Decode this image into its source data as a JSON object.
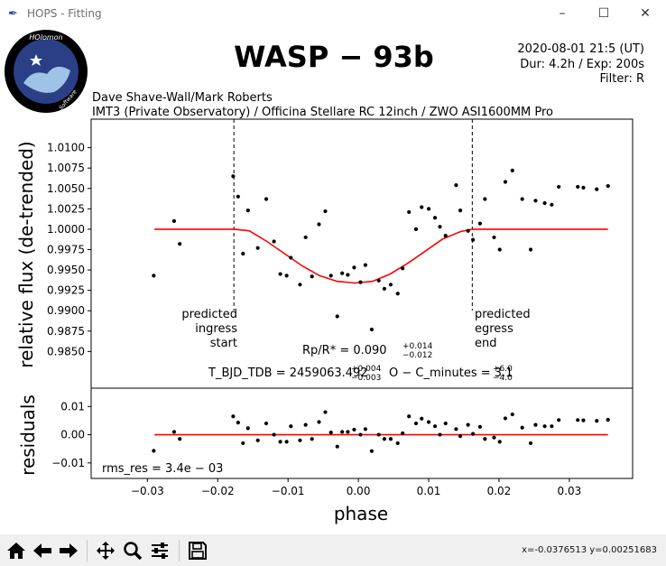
{
  "window": {
    "title": "HOPS - Fitting",
    "minimize_glyph": "–",
    "maximize_glyph": "☐",
    "close_glyph": "✕"
  },
  "figure": {
    "logo": {
      "top_text": "HOlomon",
      "left_text": "Photometric",
      "right_text": "Software"
    },
    "title": "WASP − 93b",
    "date_line": "2020-08-01 21:5 (UT)",
    "duration_line": "Dur: 4.2h / Exp: 200s",
    "filter_line": "Filter: R",
    "observers": "Dave Shave-Wall/Mark Roberts",
    "setup": "IMT3 (Private Observatory) / Officina Stellare RC 12inch / ZWO ASI1600MM Pro",
    "ingress_label": [
      "predicted",
      "ingress",
      "start"
    ],
    "egress_label": [
      "predicted",
      "egress",
      "end"
    ],
    "rp_text": {
      "lhs": "Rp/R* = 0.090",
      "up": "+0.014",
      "down": "−0.012"
    },
    "tmid_text": {
      "lhs": "T_BJD_TDB = 2459063.492",
      "up": "+0.004",
      "down": "−0.003",
      "oc": "O − C_minutes = 3.1",
      "oc_up": "+6.0",
      "oc_down": "−4.0"
    },
    "rms_text": "rms_res = 3.4e − 03"
  },
  "chart_data": [
    {
      "type": "scatter",
      "panel": "flux",
      "ylabel": "relative flux (de-trended)",
      "xlim": [
        -0.038,
        0.039
      ],
      "ylim": [
        0.9805,
        1.0135
      ],
      "yticks": [
        0.985,
        0.9875,
        0.99,
        0.9925,
        0.995,
        0.9975,
        1.0,
        1.0025,
        1.005,
        1.0075,
        1.01
      ],
      "ytick_labels": [
        "0.9850",
        "0.9875",
        "0.9900",
        "0.9925",
        "0.9950",
        "0.9975",
        "1.0000",
        "1.0025",
        "1.0050",
        "1.0075",
        "1.0100"
      ],
      "ingress_x": -0.0177,
      "egress_x": 0.0162,
      "series": [
        {
          "kind": "points",
          "color": "#000000",
          "x": [
            -0.0291,
            -0.0262,
            -0.0254,
            -0.0178,
            -0.0171,
            -0.0164,
            -0.0157,
            -0.0143,
            -0.0131,
            -0.012,
            -0.0111,
            -0.0102,
            -0.0096,
            -0.0083,
            -0.0075,
            -0.0066,
            -0.0056,
            -0.0047,
            -0.0039,
            -0.003,
            -0.0023,
            -0.0015,
            -0.0006,
            0.0003,
            0.001,
            0.0019,
            0.0029,
            0.0037,
            0.0046,
            0.0056,
            0.0063,
            0.0072,
            0.0082,
            0.009,
            0.01,
            0.0109,
            0.0116,
            0.0124,
            0.0139,
            0.0145,
            0.0156,
            0.0163,
            0.0173,
            0.018,
            0.0193,
            0.0201,
            0.0209,
            0.0219,
            0.0233,
            0.0245,
            0.0252,
            0.0265,
            0.0275,
            0.0285,
            0.0312,
            0.032,
            0.0339,
            0.0355
          ],
          "y": [
            0.9943,
            1.001,
            0.9982,
            1.0065,
            1.004,
            0.997,
            1.0023,
            0.9977,
            1.0037,
            0.9985,
            0.9945,
            0.9943,
            0.9965,
            0.9932,
            0.999,
            0.9942,
            1.0006,
            1.0022,
            0.9943,
            0.9893,
            0.9946,
            0.9944,
            0.9953,
            0.9935,
            0.9956,
            0.9877,
            0.9937,
            0.9927,
            0.9932,
            0.9921,
            0.9952,
            1.0021,
            1.0,
            1.0027,
            1.0025,
            1.0014,
            1.0003,
            0.9992,
            1.0054,
            1.0023,
            0.9998,
            0.9987,
            1.0007,
            1.0037,
            0.999,
            0.9975,
            1.0058,
            1.0072,
            1.0037,
            0.9975,
            1.0035,
            1.0032,
            1.003,
            1.0052,
            1.0052,
            1.0051,
            1.0049,
            1.0053
          ]
        },
        {
          "kind": "model",
          "color": "#ff0000",
          "x": [
            -0.029,
            -0.0177,
            -0.0155,
            -0.013,
            -0.0105,
            -0.008,
            -0.0055,
            -0.003,
            -0.0005,
            0.002,
            0.0045,
            0.007,
            0.0095,
            0.012,
            0.0145,
            0.0162,
            0.0355
          ],
          "y": [
            1.0,
            1.0,
            0.9998,
            0.9985,
            0.997,
            0.9955,
            0.9943,
            0.9936,
            0.9934,
            0.9936,
            0.9945,
            0.9958,
            0.9973,
            0.9988,
            0.9997,
            1.0,
            1.0
          ]
        }
      ]
    },
    {
      "type": "scatter",
      "panel": "residuals",
      "ylabel": "residuals",
      "xlabel": "phase",
      "xlim": [
        -0.038,
        0.039
      ],
      "ylim": [
        -0.0155,
        0.0165
      ],
      "yticks": [
        -0.01,
        0.0,
        0.01
      ],
      "ytick_labels": [
        "−0.01",
        "0.00",
        "0.01"
      ],
      "xticks": [
        -0.03,
        -0.02,
        -0.01,
        0.0,
        0.01,
        0.02,
        0.03
      ],
      "xtick_labels": [
        "−0.03",
        "−0.02",
        "−0.01",
        "0.00",
        "0.01",
        "0.02",
        "0.03"
      ],
      "series": [
        {
          "kind": "points",
          "color": "#000000",
          "x": [
            -0.0291,
            -0.0262,
            -0.0254,
            -0.0178,
            -0.0171,
            -0.0164,
            -0.0157,
            -0.0143,
            -0.0131,
            -0.012,
            -0.0111,
            -0.0102,
            -0.0096,
            -0.0083,
            -0.0075,
            -0.0066,
            -0.0056,
            -0.0047,
            -0.0039,
            -0.003,
            -0.0023,
            -0.0015,
            -0.0006,
            0.0003,
            0.001,
            0.0019,
            0.0029,
            0.0037,
            0.0046,
            0.0056,
            0.0063,
            0.0072,
            0.0082,
            0.009,
            0.01,
            0.0109,
            0.0116,
            0.0124,
            0.0139,
            0.0145,
            0.0156,
            0.0163,
            0.0173,
            0.018,
            0.0193,
            0.0201,
            0.0209,
            0.0219,
            0.0233,
            0.0245,
            0.0252,
            0.0265,
            0.0275,
            0.0285,
            0.0312,
            0.032,
            0.0339,
            0.0355
          ],
          "y": [
            -0.0057,
            0.001,
            -0.0015,
            0.0065,
            0.0043,
            -0.003,
            0.0023,
            -0.002,
            0.004,
            0.0,
            -0.0025,
            -0.0025,
            0.003,
            -0.002,
            0.0035,
            -0.0015,
            0.0045,
            0.008,
            0.0008,
            -0.0042,
            0.001,
            0.001,
            0.0018,
            0.0,
            0.002,
            -0.0058,
            0.0,
            -0.0015,
            -0.0015,
            -0.003,
            0.0005,
            0.0065,
            0.004,
            0.0057,
            0.0045,
            0.003,
            0.0,
            0.004,
            0.002,
            -0.0005,
            0.0035,
            0.0003,
            0.0028,
            -0.0015,
            -0.001,
            -0.0025,
            0.0058,
            0.0072,
            0.0025,
            -0.003,
            0.0035,
            0.003,
            0.003,
            0.0052,
            0.0052,
            0.0051,
            0.0049,
            0.0053
          ]
        },
        {
          "kind": "zero-line",
          "color": "#ff0000",
          "x": [
            -0.029,
            0.0355
          ],
          "y": [
            0.0,
            0.0
          ]
        }
      ]
    }
  ],
  "toolbar": {
    "buttons": [
      "home",
      "back",
      "forward",
      "pan",
      "zoom",
      "configure",
      "save"
    ],
    "coords": "x=-0.0376513   y=0.00251683"
  }
}
